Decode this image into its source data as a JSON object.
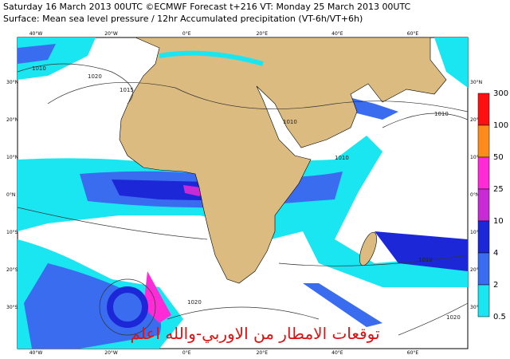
{
  "header": {
    "line1": "Saturday 16 March 2013 00UTC ©ECMWF Forecast t+216 VT: Monday 25 March 2013 00UTC",
    "line2": "Surface: Mean sea level pressure / 12hr Accumulated precipitation (VT-6h/VT+6h)"
  },
  "map": {
    "longitudes": [
      "40°W",
      "20°W",
      "0°E",
      "20°E",
      "40°E",
      "60°E"
    ],
    "latitudes": [
      "30°N",
      "20°N",
      "10°N",
      "0°N",
      "10°S",
      "20°S",
      "30°S"
    ],
    "isobar_labels": [
      "1010",
      "1020",
      "1015",
      "1010",
      "1010",
      "1010",
      "1010",
      "1020",
      "1020"
    ],
    "land_color": "#dcbb80",
    "ocean_color": "#ffffff"
  },
  "legend": {
    "labels": [
      300,
      100,
      50,
      25,
      10,
      4,
      2,
      0.5
    ],
    "colors": [
      "#ff1010",
      "#ff8c1a",
      "#ff2bd6",
      "#c82bd6",
      "#1c28d8",
      "#3a6cf0",
      "#19e6f0"
    ]
  },
  "watermark": "توقعات الامطار من الاوربي-والله اعلم"
}
